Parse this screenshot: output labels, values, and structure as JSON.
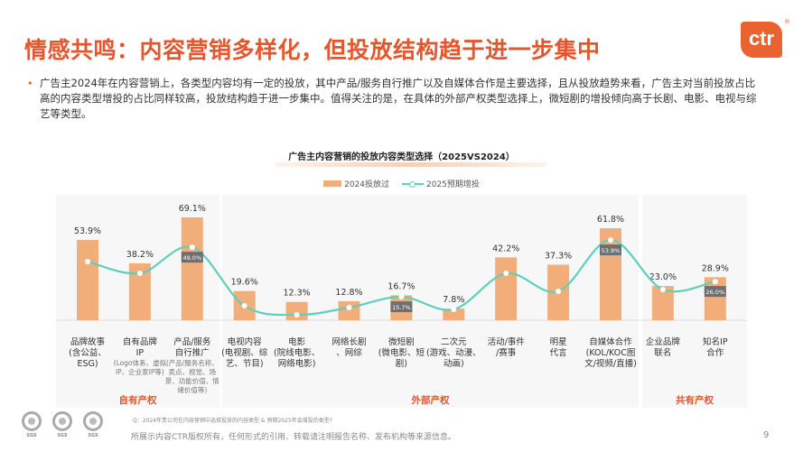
{
  "header": {
    "title": "情感共鸣：内容营销多样化，但投放结构趋于进一步集中",
    "logo": "ctr",
    "logo_mark": "®"
  },
  "body_text": "广告主2024年在内容营销上，各类型内容均有一定的投放，其中产品/服务自行推广以及自媒体合作是主要选择，且从投放趋势来看，广告主对当前投放占比高的内容类型增投的占比同样较高，投放结构趋于进一步集中。值得关注的是，在具体的外部产权类型选择上，微短剧的增投倾向高于长剧、电影、电视与综艺等类型。",
  "bullet": "•",
  "colors": {
    "accent": "#e4572e",
    "bar": "#f1ae7b",
    "line": "#5dd0bd",
    "label_box": "#6f6f6f"
  },
  "chart_data": {
    "type": "bar+line",
    "title": "广告主内容营销的投放内容类型选择（2025VS2024）",
    "legend_position": "top",
    "categories": [
      {
        "label": "品牌故事\n(含公益、\nESG)",
        "sub": ""
      },
      {
        "label": "自有品牌\nIP",
        "sub": "(Logo体系、虚拟IP、企业家IP等)"
      },
      {
        "label": "产品/服务\n自行推广",
        "sub": "(产品/服务名称、卖点、视觉、场景、功能价值、情绪价值等)"
      },
      {
        "label": "电视内容\n(电视剧、综\n艺、节目)",
        "sub": ""
      },
      {
        "label": "电影\n(院线电影、\n网络电影)",
        "sub": ""
      },
      {
        "label": "网络长剧\n、网综",
        "sub": ""
      },
      {
        "label": "微短剧\n(微电影、短\n剧)",
        "sub": ""
      },
      {
        "label": "二次元\n(游戏、动漫、\n动画)",
        "sub": ""
      },
      {
        "label": "活动/事件\n/赛事",
        "sub": ""
      },
      {
        "label": "明星\n代言",
        "sub": ""
      },
      {
        "label": "自媒体合作\n(KOL/KOC图\n文/视频/直播)",
        "sub": ""
      },
      {
        "label": "企业品牌\n联名",
        "sub": ""
      },
      {
        "label": "知名IP\n合作",
        "sub": ""
      }
    ],
    "series": [
      {
        "name": "2024投放过",
        "type": "bar",
        "values": [
          53.9,
          38.2,
          69.1,
          19.6,
          12.3,
          12.8,
          16.7,
          7.8,
          42.2,
          37.3,
          61.8,
          23.0,
          28.9
        ],
        "labels": [
          "53.9%",
          "38.2%",
          "69.1%",
          "19.6%",
          "12.3%",
          "12.8%",
          "16.7%",
          "7.8%",
          "42.2%",
          "37.3%",
          "61.8%",
          "23.0%",
          "28.9%"
        ]
      },
      {
        "name": "2025预期增投",
        "type": "line",
        "values": [
          39.4,
          31.5,
          49.0,
          9.7,
          3.6,
          8.5,
          15.7,
          7.3,
          31.5,
          19.4,
          53.9,
          20.6,
          26.0
        ],
        "labels": [
          "",
          "",
          "49.0%",
          "",
          "",
          "",
          "15.7%",
          "",
          "",
          "",
          "53.9%",
          "",
          "26.0%"
        ]
      }
    ],
    "groups": [
      {
        "label": "自有产权"
      },
      {
        "label": "外部产权"
      },
      {
        "label": "共有产权"
      }
    ]
  },
  "footer": {
    "question": "Q：2024年贵公司在内容营销中选择投放的内容类型 & 预期2025年会增投的类型?",
    "copyright": "所展示内容CTR版权所有，任何形式的引用、转载请注明报告名称、发布机构等来源信息。",
    "page": "9",
    "cert_logos": [
      "SGS",
      "SGS",
      "SGS"
    ]
  }
}
